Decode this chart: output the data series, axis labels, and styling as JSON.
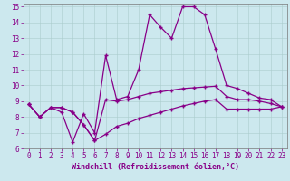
{
  "xlabel": "Windchill (Refroidissement éolien,°C)",
  "xlim": [
    -0.5,
    23.5
  ],
  "ylim": [
    6,
    15.2
  ],
  "xticks": [
    0,
    1,
    2,
    3,
    4,
    5,
    6,
    7,
    8,
    9,
    10,
    11,
    12,
    13,
    14,
    15,
    16,
    17,
    18,
    19,
    20,
    21,
    22,
    23
  ],
  "yticks": [
    6,
    7,
    8,
    9,
    10,
    11,
    12,
    13,
    14,
    15
  ],
  "bg_color": "#cce8ee",
  "line_color": "#880088",
  "line1_x": [
    0,
    1,
    2,
    3,
    4,
    5,
    6,
    7,
    8,
    9,
    10,
    11,
    12,
    13,
    14,
    15,
    16,
    17,
    18,
    19,
    20,
    21,
    22,
    23
  ],
  "line1_y": [
    8.8,
    8.0,
    8.6,
    8.6,
    8.3,
    7.5,
    6.5,
    9.1,
    9.0,
    9.1,
    9.3,
    9.5,
    9.6,
    9.7,
    9.8,
    9.85,
    9.9,
    9.95,
    9.3,
    9.1,
    9.1,
    9.0,
    8.85,
    8.65
  ],
  "line2_x": [
    0,
    1,
    2,
    3,
    4,
    5,
    6,
    7,
    8,
    9,
    10,
    11,
    12,
    13,
    14,
    15,
    16,
    17,
    18,
    19,
    20,
    21,
    22,
    23
  ],
  "line2_y": [
    8.8,
    8.0,
    8.6,
    8.3,
    6.4,
    8.2,
    7.0,
    11.9,
    9.1,
    9.3,
    11.0,
    14.5,
    13.7,
    13.0,
    15.0,
    15.0,
    14.5,
    12.3,
    10.0,
    9.8,
    9.5,
    9.2,
    9.1,
    8.65
  ],
  "line3_x": [
    0,
    1,
    2,
    3,
    4,
    5,
    6,
    7,
    8,
    9,
    10,
    11,
    12,
    13,
    14,
    15,
    16,
    17,
    18,
    19,
    20,
    21,
    22,
    23
  ],
  "line3_y": [
    8.8,
    8.0,
    8.6,
    8.6,
    8.3,
    7.5,
    6.5,
    6.9,
    7.4,
    7.6,
    7.9,
    8.1,
    8.3,
    8.5,
    8.7,
    8.85,
    9.0,
    9.1,
    8.5,
    8.5,
    8.5,
    8.5,
    8.5,
    8.65
  ],
  "marker": "+",
  "markersize": 3,
  "linewidth": 0.9,
  "tick_fontsize": 5.5,
  "label_fontsize": 6.0
}
